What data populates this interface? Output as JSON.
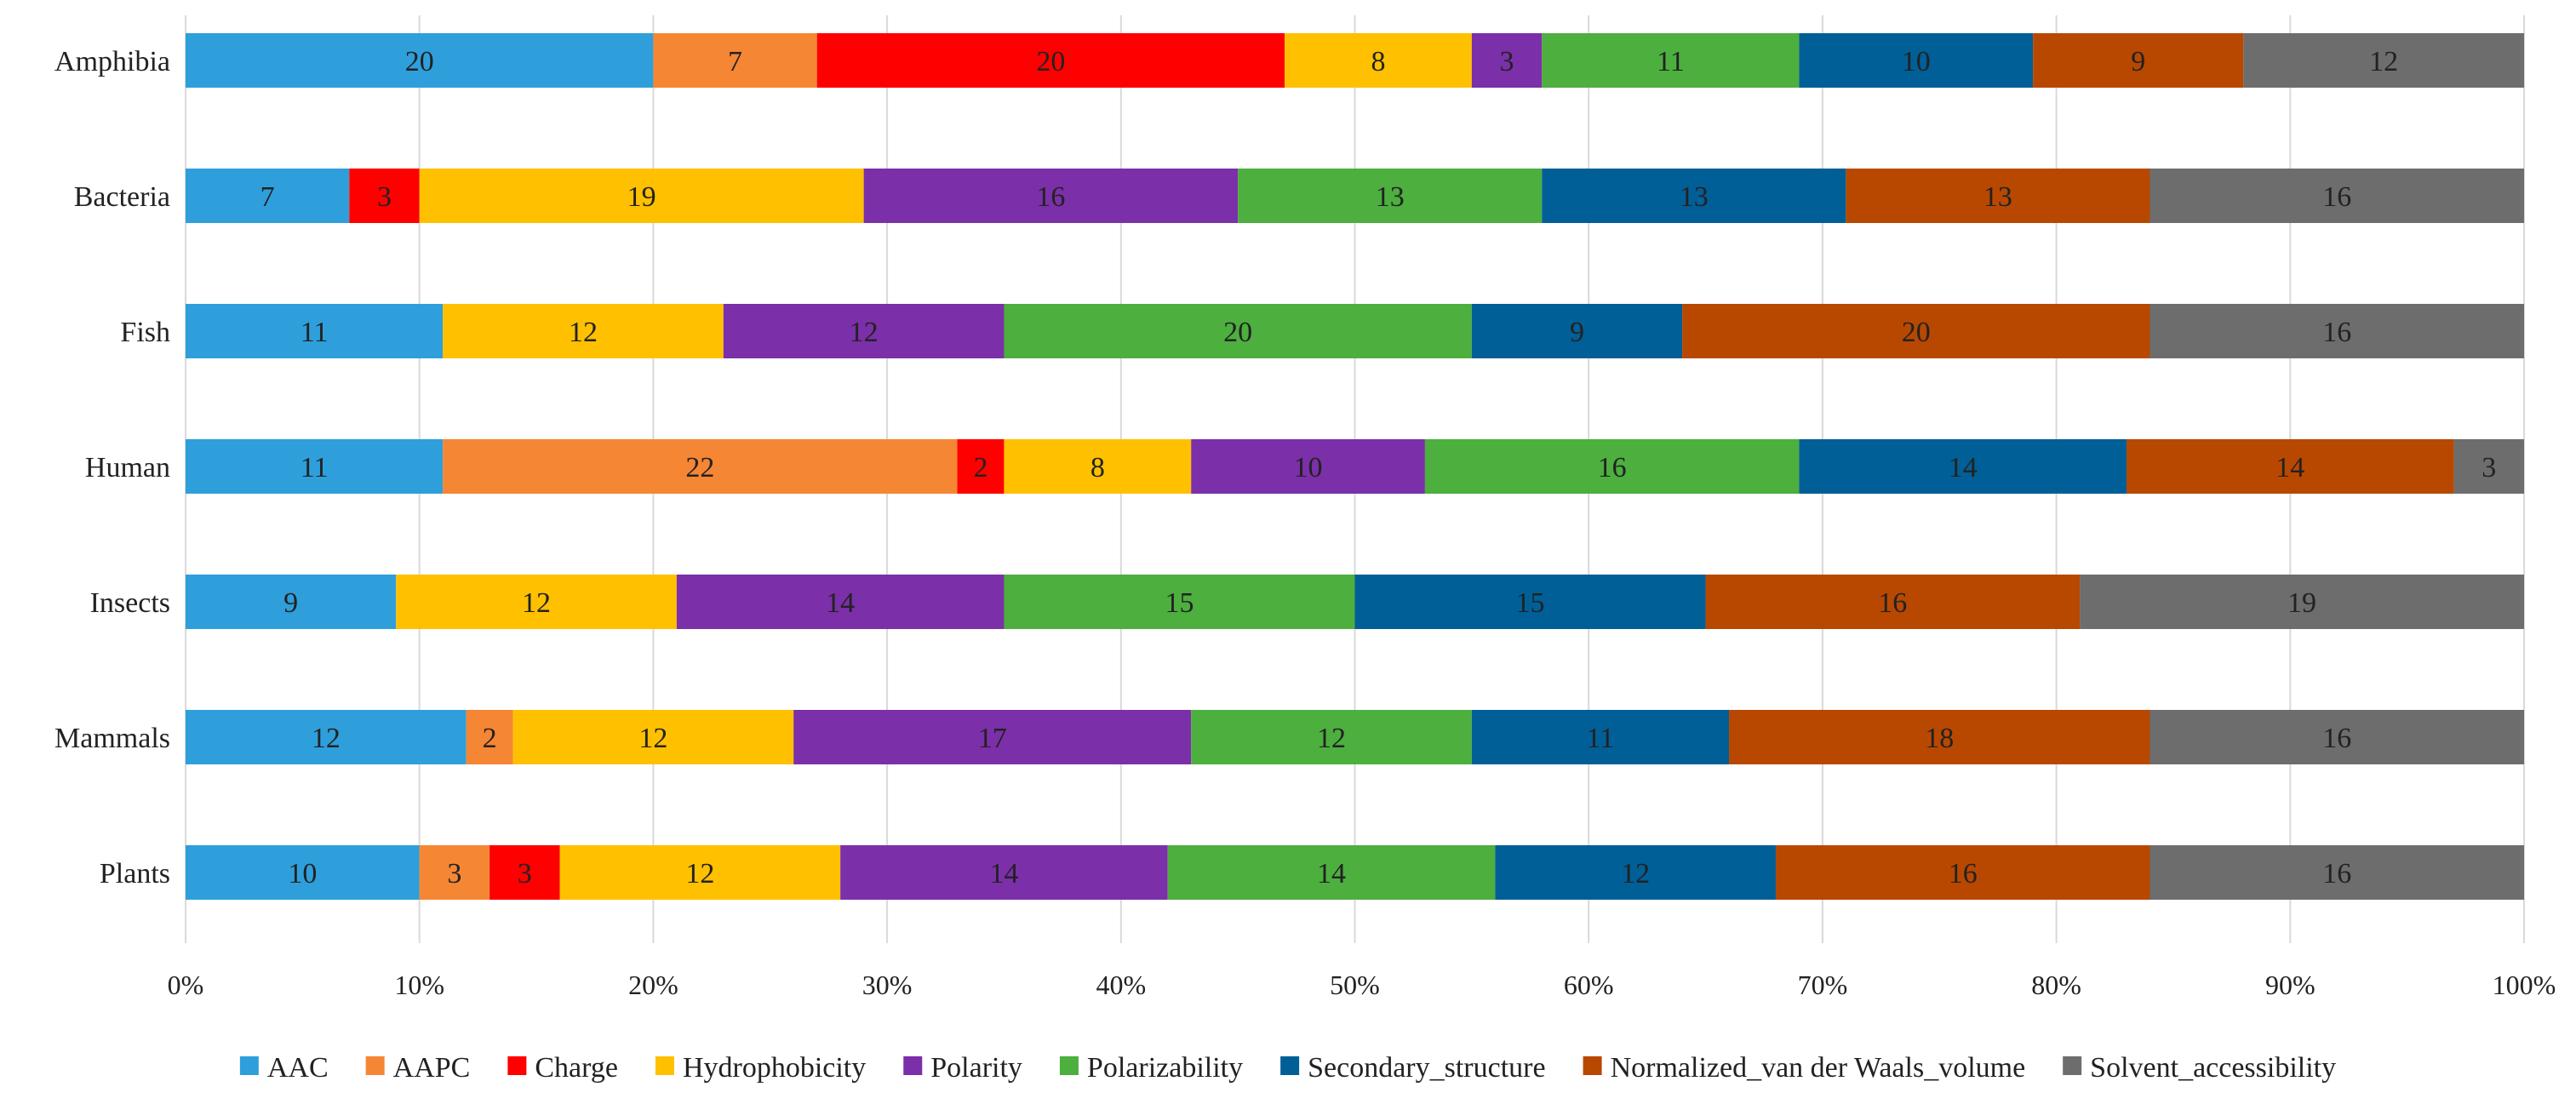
{
  "chart_data": {
    "type": "bar",
    "orientation": "horizontal",
    "stacking": "percent",
    "title": "",
    "xlabel": "",
    "ylabel": "",
    "xlim": [
      0,
      100
    ],
    "xticks": [
      0,
      10,
      20,
      30,
      40,
      50,
      60,
      70,
      80,
      90,
      100
    ],
    "tick_suffix": "%",
    "grid": true,
    "legend_position": "bottom",
    "categories": [
      "Amphibia",
      "Bacteria",
      "Fish",
      "Human",
      "Insects",
      "Mammals",
      "Plants"
    ],
    "series": [
      {
        "name": "AAC",
        "color": "#2e9fdb",
        "values": [
          20,
          7,
          11,
          11,
          9,
          12,
          10
        ]
      },
      {
        "name": "AAPC",
        "color": "#f58634",
        "values": [
          7,
          0,
          0,
          22,
          0,
          2,
          3
        ]
      },
      {
        "name": "Charge",
        "color": "#ff0000",
        "values": [
          20,
          3,
          0,
          2,
          0,
          0,
          3
        ]
      },
      {
        "name": "Hydrophobicity",
        "color": "#ffc000",
        "values": [
          8,
          19,
          12,
          8,
          12,
          12,
          12
        ]
      },
      {
        "name": "Polarity",
        "color": "#7b2fa8",
        "values": [
          3,
          16,
          12,
          10,
          14,
          17,
          14
        ]
      },
      {
        "name": "Polarizability",
        "color": "#4caf3e",
        "values": [
          11,
          13,
          20,
          16,
          15,
          12,
          14
        ]
      },
      {
        "name": "Secondary_structure",
        "color": "#005f97",
        "values": [
          10,
          13,
          9,
          14,
          15,
          11,
          12
        ]
      },
      {
        "name": "Normalized_van der Waals_volume",
        "color": "#b84800",
        "values": [
          9,
          13,
          20,
          14,
          16,
          18,
          16
        ]
      },
      {
        "name": "Solvent_accessibility",
        "color": "#6d6d6d",
        "values": [
          12,
          16,
          16,
          3,
          19,
          16,
          16
        ]
      }
    ]
  }
}
